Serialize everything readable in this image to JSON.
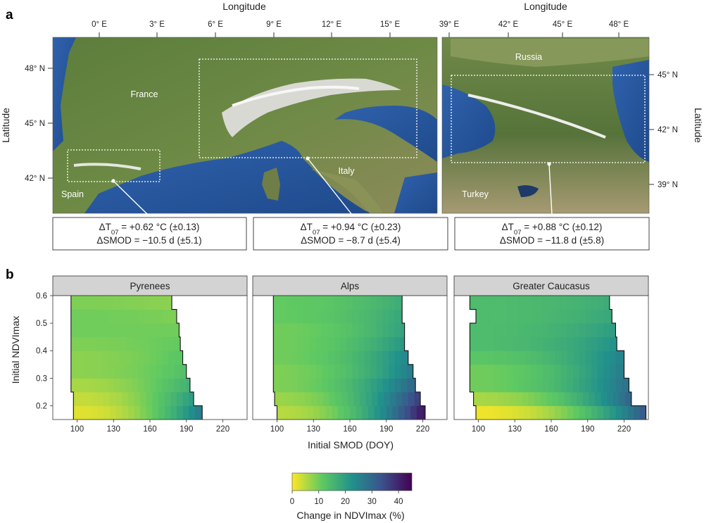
{
  "panel_a": {
    "letter": "a",
    "left_map": {
      "x_title": "Longitude",
      "y_title": "Latitude",
      "x_ticks": [
        "0° E",
        "3° E",
        "6° E",
        "9° E",
        "12° E",
        "15° E"
      ],
      "y_ticks": [
        "48° N",
        "45° N",
        "42° N"
      ],
      "places": [
        "France",
        "Italy",
        "Spain"
      ]
    },
    "right_map": {
      "x_title": "Longitude",
      "y_title": "Latitude",
      "x_ticks": [
        "39° E",
        "42° E",
        "45° E",
        "48° E"
      ],
      "y_ticks": [
        "45° N",
        "42° N",
        "39° N"
      ],
      "places": [
        "Russia",
        "Turkey"
      ]
    },
    "stats": [
      {
        "region": "Pyrenees",
        "dt_prefix": "ΔT",
        "dt_sub": "07",
        "dt_value": " = +0.62 °C (±0.13)",
        "smod": "ΔSMOD = −10.5 d (±5.1)"
      },
      {
        "region": "Alps",
        "dt_prefix": "ΔT",
        "dt_sub": "07",
        "dt_value": " = +0.94 °C (±0.23)",
        "smod": "ΔSMOD = −8.7 d (±5.4)"
      },
      {
        "region": "Greater Caucasus",
        "dt_prefix": "ΔT",
        "dt_sub": "07",
        "dt_value": " = +0.88 °C (±0.12)",
        "smod": "ΔSMOD = −11.8 d (±5.8)"
      }
    ]
  },
  "colors": {
    "panel_border": "#333333",
    "strip_fill": "#d3d3d3",
    "frontier": "#111111",
    "sea": "#2e5fa8",
    "land": "#587a3a",
    "snow": "#f4f4f4"
  },
  "chart_data": {
    "letter": "b",
    "type": "heatmap",
    "xlabel": "Initial SMOD (DOY)",
    "ylabel": "Initial NDVImax",
    "x_ticks": [
      100,
      130,
      160,
      190,
      220
    ],
    "y_ticks": [
      0.2,
      0.3,
      0.4,
      0.5,
      0.6
    ],
    "xlim": [
      80,
      240
    ],
    "ylim": [
      0.15,
      0.6
    ],
    "x_bin_width": 5,
    "y_bin_width": 0.05,
    "y_bins": [
      0.175,
      0.225,
      0.275,
      0.325,
      0.375,
      0.425,
      0.475,
      0.525,
      0.575
    ],
    "colorbar": {
      "title": "Change in NDVImax (%)",
      "ticks": [
        0,
        10,
        20,
        30,
        40
      ],
      "range": [
        0,
        45
      ],
      "colormap": "viridis_reversed"
    },
    "facets": [
      {
        "name": "Pyrenees",
        "x_min_per_row": [
          97,
          97,
          95,
          95,
          95,
          95,
          95,
          95,
          95
        ],
        "x_max_per_row": [
          203,
          196,
          193,
          190,
          187,
          185,
          184,
          182,
          178
        ],
        "change_at_low_smod_by_row": [
          2,
          4,
          6,
          8,
          8,
          9,
          10,
          10,
          9
        ],
        "change_at_max_smod_by_row": [
          26,
          20,
          16,
          13,
          12,
          11,
          10,
          9,
          8
        ]
      },
      {
        "name": "Alps",
        "x_min_per_row": [
          100,
          98,
          97,
          97,
          97,
          97,
          97,
          97,
          97
        ],
        "x_max_per_row": [
          222,
          218,
          214,
          212,
          208,
          205,
          205,
          203,
          203
        ],
        "change_at_low_smod_by_row": [
          5,
          7,
          9,
          9,
          10,
          10,
          10,
          11,
          11
        ],
        "change_at_max_smod_by_row": [
          42,
          36,
          30,
          26,
          24,
          21,
          19,
          18,
          17
        ]
      },
      {
        "name": "Greater Caucasus",
        "x_min_per_row": [
          98,
          96,
          93,
          93,
          93,
          93,
          93,
          98,
          93
        ],
        "x_max_per_row": [
          238,
          226,
          224,
          220,
          220,
          214,
          213,
          210,
          208
        ],
        "change_at_low_smod_by_row": [
          1,
          6,
          10,
          10,
          12,
          14,
          14,
          14,
          14
        ],
        "change_at_max_smod_by_row": [
          32,
          30,
          28,
          26,
          25,
          22,
          20,
          18,
          17
        ]
      }
    ]
  }
}
